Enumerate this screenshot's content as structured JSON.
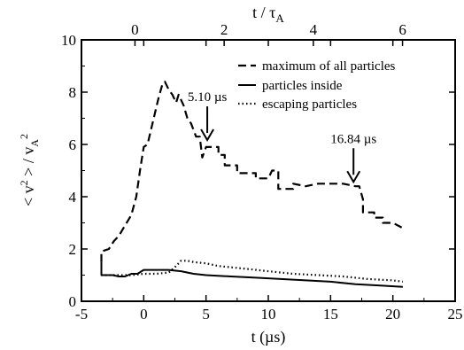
{
  "chart_data": {
    "type": "line",
    "xlabel": "t (µs)",
    "top_xlabel": "t / τA",
    "ylabel": "< v2 > / vA2",
    "xlim": [
      -5,
      25
    ],
    "ylim": [
      0,
      10
    ],
    "top_xlim": [
      -1.2,
      7.18
    ],
    "x_ticks": [
      "-5",
      "0",
      "5",
      "10",
      "15",
      "20",
      "25"
    ],
    "y_ticks": [
      "0",
      "2",
      "4",
      "6",
      "8",
      "10"
    ],
    "top_ticks": [
      "0",
      "2",
      "4",
      "6"
    ],
    "legend_position": "top-right",
    "series": [
      {
        "name": "maximum of all particles",
        "style": "dashed",
        "points": [
          [
            -3.4,
            1.5
          ],
          [
            -3.4,
            1.9
          ],
          [
            -2.8,
            2.0
          ],
          [
            -2.4,
            2.3
          ],
          [
            -2.0,
            2.5
          ],
          [
            -1.5,
            2.9
          ],
          [
            -1.0,
            3.3
          ],
          [
            -0.6,
            4.0
          ],
          [
            -0.3,
            5.0
          ],
          [
            -0.1,
            5.6
          ],
          [
            0.0,
            5.9
          ],
          [
            0.3,
            6.0
          ],
          [
            0.6,
            6.6
          ],
          [
            0.9,
            7.2
          ],
          [
            1.2,
            7.8
          ],
          [
            1.5,
            8.3
          ],
          [
            1.7,
            8.4
          ],
          [
            2.0,
            8.1
          ],
          [
            2.3,
            7.9
          ],
          [
            2.6,
            7.6
          ],
          [
            2.8,
            7.9
          ],
          [
            3.2,
            7.5
          ],
          [
            3.5,
            7.0
          ],
          [
            3.8,
            6.8
          ],
          [
            4.2,
            6.3
          ],
          [
            4.5,
            6.3
          ],
          [
            4.7,
            5.5
          ],
          [
            5.0,
            5.9
          ],
          [
            6.0,
            5.9
          ],
          [
            6.0,
            5.6
          ],
          [
            6.5,
            5.6
          ],
          [
            6.5,
            5.2
          ],
          [
            7.5,
            5.2
          ],
          [
            7.5,
            4.9
          ],
          [
            9.0,
            4.9
          ],
          [
            9.0,
            4.7
          ],
          [
            10.0,
            4.7
          ],
          [
            10.3,
            5.0
          ],
          [
            10.8,
            5.0
          ],
          [
            10.8,
            4.3
          ],
          [
            12.0,
            4.3
          ],
          [
            12.0,
            4.5
          ],
          [
            13.0,
            4.4
          ],
          [
            14.0,
            4.5
          ],
          [
            15.0,
            4.5
          ],
          [
            16.0,
            4.5
          ],
          [
            17.0,
            4.4
          ],
          [
            17.3,
            4.4
          ],
          [
            17.6,
            3.9
          ],
          [
            17.6,
            3.4
          ],
          [
            18.5,
            3.4
          ],
          [
            18.5,
            3.2
          ],
          [
            19.2,
            3.2
          ],
          [
            19.2,
            3.0
          ],
          [
            20.0,
            3.0
          ],
          [
            20.8,
            2.8
          ]
        ]
      },
      {
        "name": "particles inside",
        "style": "solid",
        "points": [
          [
            -3.4,
            1.5
          ],
          [
            -3.4,
            1.0
          ],
          [
            -2.5,
            1.0
          ],
          [
            -2.0,
            0.95
          ],
          [
            -1.5,
            0.95
          ],
          [
            -1.0,
            1.05
          ],
          [
            -0.5,
            1.05
          ],
          [
            0.0,
            1.2
          ],
          [
            0.5,
            1.2
          ],
          [
            1.5,
            1.2
          ],
          [
            2.0,
            1.2
          ],
          [
            3.0,
            1.15
          ],
          [
            4.0,
            1.05
          ],
          [
            5.0,
            1.0
          ],
          [
            7.0,
            0.95
          ],
          [
            9.0,
            0.9
          ],
          [
            11.0,
            0.85
          ],
          [
            13.0,
            0.8
          ],
          [
            15.0,
            0.75
          ],
          [
            17.0,
            0.65
          ],
          [
            19.0,
            0.6
          ],
          [
            20.8,
            0.55
          ]
        ]
      },
      {
        "name": "escaping particles",
        "style": "dotted",
        "points": [
          [
            -3.4,
            1.0
          ],
          [
            -2.0,
            1.0
          ],
          [
            -1.0,
            1.0
          ],
          [
            0.0,
            1.05
          ],
          [
            1.0,
            1.05
          ],
          [
            2.0,
            1.1
          ],
          [
            2.5,
            1.3
          ],
          [
            3.0,
            1.55
          ],
          [
            3.5,
            1.55
          ],
          [
            4.0,
            1.5
          ],
          [
            5.0,
            1.45
          ],
          [
            6.0,
            1.35
          ],
          [
            8.0,
            1.25
          ],
          [
            10.0,
            1.15
          ],
          [
            12.0,
            1.05
          ],
          [
            14.0,
            1.0
          ],
          [
            16.0,
            0.95
          ],
          [
            18.0,
            0.85
          ],
          [
            20.0,
            0.8
          ],
          [
            20.8,
            0.75
          ]
        ]
      }
    ],
    "annotations": [
      {
        "text": "5.10 µs",
        "x": 5.1,
        "y": 6.1
      },
      {
        "text": "16.84 µs",
        "x": 16.84,
        "y": 4.5
      }
    ]
  }
}
